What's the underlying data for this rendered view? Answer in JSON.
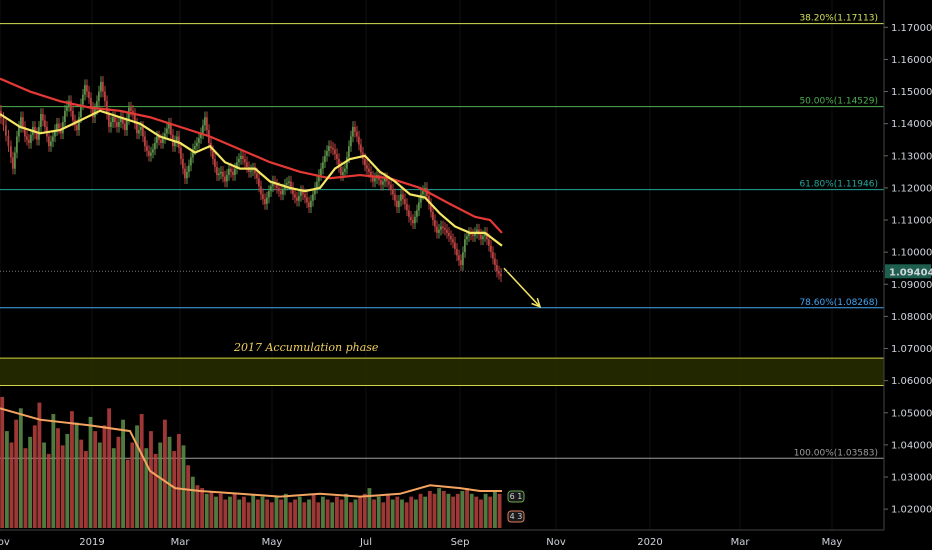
{
  "chart_data": {
    "type": "candlestick",
    "x_ticks": [
      "Nov",
      "2019",
      "Mar",
      "May",
      "Jul",
      "Sep",
      "Nov",
      "2020",
      "Mar",
      "May"
    ],
    "y_ticks": [
      "1.17000",
      "1.16000",
      "1.15000",
      "1.14000",
      "1.13000",
      "1.12000",
      "1.11000",
      "1.10000",
      "1.09000",
      "1.08000",
      "1.07000",
      "1.06000",
      "1.05000",
      "1.04000",
      "1.03000",
      "1.02000"
    ],
    "ylim": [
      1.0135,
      1.1785
    ],
    "current_price": "1.09404",
    "current_price_value": 1.09404,
    "fib_levels": [
      {
        "label": "38.20%(1.17113)",
        "price": 1.17113,
        "color": "#d4e157"
      },
      {
        "label": "50.00%(1.14529)",
        "price": 1.14529,
        "color": "#4caf50"
      },
      {
        "label": "61.80%(1.11946)",
        "price": 1.11946,
        "color": "#26a69a"
      },
      {
        "label": "78.60%(1.08268)",
        "price": 1.08268,
        "color": "#42a5f5"
      },
      {
        "label": "100.00%(1.03583)",
        "price": 1.03583,
        "color": "#9e9e9e"
      }
    ],
    "accumulation_zone": {
      "label": "2017 Accumulation phase",
      "top": 1.067,
      "bottom": 1.0585
    },
    "ema_fast_color": "#f5e663",
    "ema_slow_color": "#e53935",
    "volume_ma_color": "#f4a460",
    "volume_badges": [
      "6 1",
      "4 3"
    ],
    "price_path": [
      [
        0,
        1.144
      ],
      [
        5,
        1.1395
      ],
      [
        10,
        1.133
      ],
      [
        14,
        1.126
      ],
      [
        18,
        1.136
      ],
      [
        22,
        1.142
      ],
      [
        26,
        1.136
      ],
      [
        30,
        1.134
      ],
      [
        34,
        1.139
      ],
      [
        38,
        1.135
      ],
      [
        42,
        1.143
      ],
      [
        46,
        1.139
      ],
      [
        50,
        1.133
      ],
      [
        54,
        1.136
      ],
      [
        58,
        1.14
      ],
      [
        62,
        1.137
      ],
      [
        66,
        1.144
      ],
      [
        70,
        1.147
      ],
      [
        74,
        1.141
      ],
      [
        78,
        1.138
      ],
      [
        82,
        1.146
      ],
      [
        86,
        1.152
      ],
      [
        90,
        1.148
      ],
      [
        94,
        1.142
      ],
      [
        98,
        1.147
      ],
      [
        102,
        1.153
      ],
      [
        106,
        1.147
      ],
      [
        110,
        1.139
      ],
      [
        114,
        1.142
      ],
      [
        118,
        1.139
      ],
      [
        122,
        1.142
      ],
      [
        126,
        1.138
      ],
      [
        130,
        1.145
      ],
      [
        134,
        1.143
      ],
      [
        138,
        1.137
      ],
      [
        142,
        1.139
      ],
      [
        146,
        1.133
      ],
      [
        150,
        1.13
      ],
      [
        154,
        1.132
      ],
      [
        158,
        1.136
      ],
      [
        162,
        1.134
      ],
      [
        166,
        1.137
      ],
      [
        170,
        1.14
      ],
      [
        174,
        1.133
      ],
      [
        178,
        1.136
      ],
      [
        182,
        1.129
      ],
      [
        186,
        1.123
      ],
      [
        190,
        1.127
      ],
      [
        194,
        1.132
      ],
      [
        198,
        1.134
      ],
      [
        202,
        1.137
      ],
      [
        206,
        1.142
      ],
      [
        210,
        1.134
      ],
      [
        214,
        1.129
      ],
      [
        218,
        1.124
      ],
      [
        222,
        1.125
      ],
      [
        226,
        1.122
      ],
      [
        230,
        1.126
      ],
      [
        234,
        1.124
      ],
      [
        238,
        1.128
      ],
      [
        242,
        1.13
      ],
      [
        246,
        1.128
      ],
      [
        250,
        1.125
      ],
      [
        254,
        1.126
      ],
      [
        258,
        1.123
      ],
      [
        262,
        1.118
      ],
      [
        266,
        1.115
      ],
      [
        270,
        1.119
      ],
      [
        274,
        1.122
      ],
      [
        278,
        1.12
      ],
      [
        282,
        1.118
      ],
      [
        286,
        1.121
      ],
      [
        290,
        1.122
      ],
      [
        294,
        1.118
      ],
      [
        298,
        1.116
      ],
      [
        302,
        1.119
      ],
      [
        306,
        1.117
      ],
      [
        310,
        1.114
      ],
      [
        314,
        1.118
      ],
      [
        318,
        1.122
      ],
      [
        322,
        1.126
      ],
      [
        326,
        1.13
      ],
      [
        330,
        1.133
      ],
      [
        334,
        1.132
      ],
      [
        338,
        1.129
      ],
      [
        342,
        1.124
      ],
      [
        346,
        1.126
      ],
      [
        350,
        1.133
      ],
      [
        354,
        1.139
      ],
      [
        358,
        1.136
      ],
      [
        362,
        1.131
      ],
      [
        366,
        1.127
      ],
      [
        370,
        1.125
      ],
      [
        374,
        1.122
      ],
      [
        378,
        1.124
      ],
      [
        382,
        1.121
      ],
      [
        386,
        1.123
      ],
      [
        390,
        1.121
      ],
      [
        394,
        1.118
      ],
      [
        398,
        1.114
      ],
      [
        402,
        1.118
      ],
      [
        406,
        1.115
      ],
      [
        410,
        1.111
      ],
      [
        414,
        1.109
      ],
      [
        418,
        1.113
      ],
      [
        422,
        1.118
      ],
      [
        426,
        1.12
      ],
      [
        430,
        1.115
      ],
      [
        434,
        1.11
      ],
      [
        438,
        1.106
      ],
      [
        442,
        1.108
      ],
      [
        446,
        1.107
      ],
      [
        450,
        1.105
      ],
      [
        454,
        1.103
      ],
      [
        458,
        1.099
      ],
      [
        462,
        1.096
      ],
      [
        466,
        1.104
      ],
      [
        470,
        1.106
      ],
      [
        474,
        1.105
      ],
      [
        478,
        1.107
      ],
      [
        482,
        1.104
      ],
      [
        486,
        1.106
      ],
      [
        490,
        1.102
      ],
      [
        494,
        1.098
      ],
      [
        498,
        1.094
      ],
      [
        502,
        1.0925
      ]
    ],
    "ema_fast": [
      [
        0,
        1.143
      ],
      [
        20,
        1.139
      ],
      [
        40,
        1.137
      ],
      [
        60,
        1.138
      ],
      [
        80,
        1.141
      ],
      [
        100,
        1.144
      ],
      [
        120,
        1.142
      ],
      [
        140,
        1.14
      ],
      [
        160,
        1.136
      ],
      [
        180,
        1.134
      ],
      [
        195,
        1.131
      ],
      [
        210,
        1.133
      ],
      [
        225,
        1.128
      ],
      [
        240,
        1.126
      ],
      [
        255,
        1.126
      ],
      [
        270,
        1.122
      ],
      [
        290,
        1.12
      ],
      [
        305,
        1.119
      ],
      [
        320,
        1.12
      ],
      [
        335,
        1.126
      ],
      [
        350,
        1.129
      ],
      [
        365,
        1.13
      ],
      [
        380,
        1.125
      ],
      [
        395,
        1.122
      ],
      [
        410,
        1.118
      ],
      [
        425,
        1.117
      ],
      [
        440,
        1.112
      ],
      [
        455,
        1.108
      ],
      [
        470,
        1.106
      ],
      [
        485,
        1.106
      ],
      [
        502,
        1.102
      ]
    ],
    "ema_slow": [
      [
        0,
        1.154
      ],
      [
        30,
        1.15
      ],
      [
        60,
        1.147
      ],
      [
        90,
        1.145
      ],
      [
        120,
        1.144
      ],
      [
        150,
        1.142
      ],
      [
        180,
        1.139
      ],
      [
        210,
        1.136
      ],
      [
        240,
        1.132
      ],
      [
        270,
        1.128
      ],
      [
        300,
        1.125
      ],
      [
        330,
        1.123
      ],
      [
        360,
        1.124
      ],
      [
        390,
        1.123
      ],
      [
        420,
        1.12
      ],
      [
        450,
        1.115
      ],
      [
        475,
        1.111
      ],
      [
        490,
        1.11
      ],
      [
        502,
        1.106
      ]
    ],
    "forecast_arrow": [
      [
        504,
        1.095
      ],
      [
        540,
        1.083
      ]
    ],
    "volume_values": [
      46,
      34,
      30,
      38,
      42,
      28,
      32,
      36,
      44,
      30,
      26,
      40,
      35,
      29,
      33,
      41,
      37,
      31,
      27,
      39,
      34,
      30,
      36,
      42,
      28,
      32,
      38,
      24,
      30,
      36,
      40,
      28,
      34,
      26,
      30,
      38,
      32,
      27,
      33,
      29,
      22,
      18,
      15,
      14,
      12,
      13,
      11,
      12,
      10,
      11,
      12,
      10,
      11,
      9,
      12,
      10,
      11,
      10,
      9,
      11,
      10,
      12,
      9,
      10,
      11,
      9,
      10,
      12,
      9,
      11,
      10,
      9,
      11,
      10,
      12,
      9,
      10,
      11,
      12,
      14,
      10,
      11,
      9,
      12,
      10,
      11,
      10,
      9,
      11,
      10,
      12,
      11,
      13,
      12,
      14,
      13,
      12,
      11,
      12,
      13,
      14,
      12,
      11,
      10,
      12,
      11,
      13,
      12
    ],
    "volume_ma": [
      [
        0,
        42
      ],
      [
        40,
        38
      ],
      [
        90,
        36
      ],
      [
        130,
        34
      ],
      [
        150,
        20
      ],
      [
        175,
        14
      ],
      [
        200,
        13
      ],
      [
        240,
        12
      ],
      [
        280,
        11
      ],
      [
        320,
        12
      ],
      [
        360,
        11
      ],
      [
        400,
        12
      ],
      [
        430,
        15
      ],
      [
        460,
        14
      ],
      [
        480,
        13
      ],
      [
        502,
        13
      ]
    ]
  }
}
